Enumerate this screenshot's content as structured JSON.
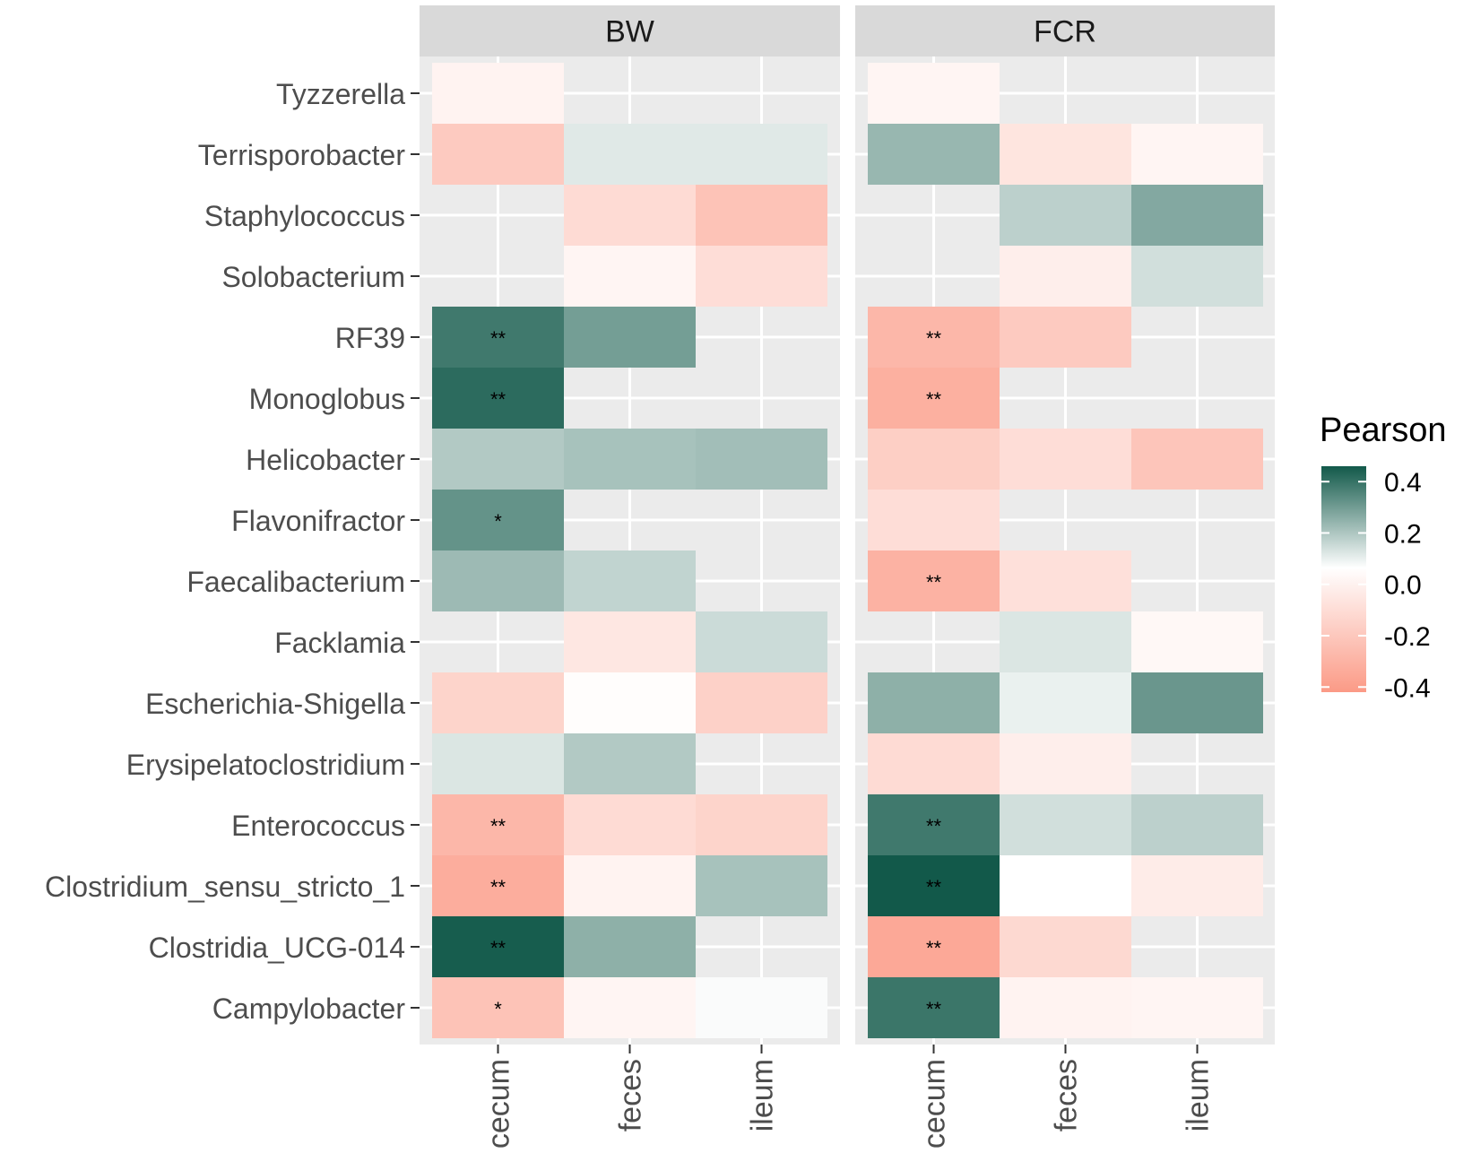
{
  "chart_data": {
    "type": "heatmap",
    "facets": [
      "BW",
      "FCR"
    ],
    "x_categories": [
      "cecum",
      "feces",
      "ileum"
    ],
    "y_categories": [
      "Tyzzerella",
      "Terrisporobacter",
      "Staphylococcus",
      "Solobacterium",
      "RF39",
      "Monoglobus",
      "Helicobacter",
      "Flavonifractor",
      "Faecalibacterium",
      "Facklamia",
      "Escherichia-Shigella",
      "Erysipelatoclostridium",
      "Enterococcus",
      "Clostridium_sensu_stricto_1",
      "Clostridia_UCG-014",
      "Campylobacter"
    ],
    "values": {
      "BW": {
        "Tyzzerella": [
          -0.05,
          null,
          null
        ],
        "Terrisporobacter": [
          -0.22,
          0.06,
          0.06
        ],
        "Staphylococcus": [
          null,
          -0.15,
          -0.25
        ],
        "Solobacterium": [
          null,
          -0.04,
          -0.14
        ],
        "RF39": [
          0.37,
          0.27,
          null
        ],
        "Monoglobus": [
          0.41,
          null,
          null
        ],
        "Helicobacter": [
          0.15,
          0.17,
          0.18
        ],
        "Flavonifractor": [
          0.3,
          null,
          null
        ],
        "Faecalibacterium": [
          0.19,
          0.12,
          null
        ],
        "Facklamia": [
          null,
          -0.1,
          0.1
        ],
        "Escherichia-Shigella": [
          -0.18,
          -0.01,
          -0.19
        ],
        "Erysipelatoclostridium": [
          0.07,
          0.15,
          null
        ],
        "Enterococcus": [
          -0.3,
          -0.15,
          -0.18
        ],
        "Clostridium_sensu_stricto_1": [
          -0.34,
          -0.05,
          0.17
        ],
        "Clostridia_UCG-014": [
          0.45,
          0.22,
          null
        ],
        "Campylobacter": [
          -0.25,
          -0.04,
          0.01
        ]
      },
      "FCR": {
        "Tyzzerella": [
          -0.04,
          null,
          null
        ],
        "Terrisporobacter": [
          0.2,
          -0.11,
          -0.04
        ],
        "Staphylococcus": [
          null,
          0.13,
          0.24
        ],
        "Solobacterium": [
          null,
          -0.07,
          0.09
        ],
        "RF39": [
          -0.3,
          -0.22,
          null
        ],
        "Monoglobus": [
          -0.33,
          null,
          null
        ],
        "Helicobacter": [
          -0.2,
          -0.14,
          -0.24
        ],
        "Flavonifractor": [
          -0.14,
          null,
          null
        ],
        "Faecalibacterium": [
          -0.32,
          -0.13,
          null
        ],
        "Facklamia": [
          null,
          0.07,
          -0.03
        ],
        "Escherichia-Shigella": [
          0.22,
          0.04,
          0.29
        ],
        "Erysipelatoclostridium": [
          -0.15,
          -0.07,
          null
        ],
        "Enterococcus": [
          0.37,
          0.09,
          0.13
        ],
        "Clostridium_sensu_stricto_1": [
          0.46,
          0.0,
          -0.08
        ],
        "Clostridia_UCG-014": [
          -0.36,
          -0.16,
          null
        ],
        "Campylobacter": [
          0.38,
          -0.05,
          -0.04
        ]
      }
    },
    "significance": {
      "BW": {
        "RF39": [
          "**",
          "",
          ""
        ],
        "Monoglobus": [
          "**",
          "",
          ""
        ],
        "Flavonifractor": [
          "*",
          "",
          ""
        ],
        "Enterococcus": [
          "**",
          "",
          ""
        ],
        "Clostridium_sensu_stricto_1": [
          "**",
          "",
          ""
        ],
        "Clostridia_UCG-014": [
          "**",
          "",
          ""
        ],
        "Campylobacter": [
          "*",
          "",
          ""
        ]
      },
      "FCR": {
        "RF39": [
          "**",
          "",
          ""
        ],
        "Monoglobus": [
          "**",
          "",
          ""
        ],
        "Faecalibacterium": [
          "**",
          "",
          ""
        ],
        "Enterococcus": [
          "**",
          "",
          ""
        ],
        "Clostridium_sensu_stricto_1": [
          "**",
          "",
          ""
        ],
        "Clostridia_UCG-014": [
          "**",
          "",
          ""
        ],
        "Campylobacter": [
          "**",
          "",
          ""
        ]
      }
    },
    "legend": {
      "title": "Pearson",
      "ticks": [
        "0.4",
        "0.2",
        "0.0",
        "-0.2",
        "-0.4"
      ],
      "tick_values": [
        0.4,
        0.2,
        0.0,
        -0.2,
        -0.4
      ],
      "range": [
        -0.42,
        0.46
      ],
      "colors": {
        "high": "#12594a",
        "mid": "#ffffff",
        "low": "#fb9a86"
      },
      "placement": "right"
    },
    "grid": true,
    "panel_background": "#ebebeb",
    "strip_background": "#d9d9d9"
  }
}
